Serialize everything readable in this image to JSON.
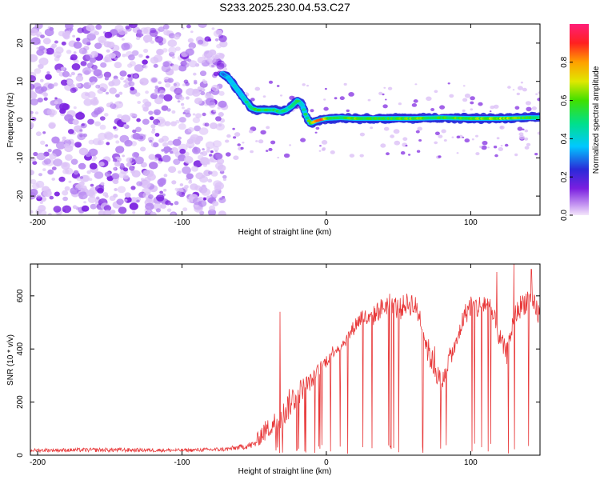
{
  "title": "S233.2025.230.04.53.C27",
  "colors": {
    "snr_line": "#e8393a",
    "frame": "#000000",
    "noise": "#8a2be2"
  },
  "chart_data": [
    {
      "type": "heatmap",
      "title": "S233.2025.230.04.53.C27",
      "xlabel": "Height of straight line (km)",
      "ylabel": "Frequency (Hz)",
      "xlim": [
        -205,
        148
      ],
      "ylim": [
        -25,
        25
      ],
      "x_ticks": [
        -200,
        -100,
        0,
        100
      ],
      "y_ticks": [
        -20,
        -10,
        0,
        10,
        20
      ],
      "noise_region": {
        "x_range": [
          -205,
          -70
        ],
        "y_range": [
          -25,
          25
        ],
        "level": 0.15
      },
      "signal_track": {
        "x": [
          -72,
          -68,
          -64,
          -60,
          -56,
          -52,
          -48,
          -44,
          -40,
          -36,
          -32,
          -28,
          -24,
          -20,
          -17,
          -14,
          -11,
          -8,
          -4,
          0,
          10,
          20,
          40,
          60,
          80,
          100,
          120,
          140,
          148
        ],
        "y": [
          12,
          11,
          9,
          7,
          5,
          3,
          2.5,
          2.5,
          2.5,
          2.5,
          2,
          2.5,
          3.5,
          5,
          4,
          1,
          -1,
          -0.5,
          0,
          0.3,
          0.5,
          0.3,
          0.3,
          0.3,
          0.5,
          0.3,
          0.3,
          0.5,
          0.5
        ],
        "amplitude": [
          0.3,
          0.35,
          0.35,
          0.4,
          0.45,
          0.5,
          0.55,
          0.5,
          0.55,
          0.5,
          0.5,
          0.45,
          0.45,
          0.5,
          0.45,
          0.5,
          0.6,
          0.75,
          0.95,
          0.6,
          0.55,
          0.6,
          0.55,
          0.6,
          0.55,
          0.6,
          0.65,
          0.55,
          0.5
        ]
      },
      "colorbar": {
        "label": "Normalized spectral amplitude",
        "range": [
          0.0,
          1.0
        ],
        "ticks": [
          "0.0",
          "0.2",
          "0.4",
          "0.6",
          "0.8"
        ],
        "tick_values": [
          0.0,
          0.2,
          0.4,
          0.6,
          0.8
        ]
      }
    },
    {
      "type": "line",
      "xlabel": "Height of straight line (km)",
      "ylabel": "SNR (10 * v/v)",
      "xlim": [
        -205,
        148
      ],
      "ylim": [
        0,
        720
      ],
      "x_ticks": [
        -200,
        -100,
        0,
        100
      ],
      "y_ticks": [
        0,
        200,
        400,
        600
      ],
      "series": [
        {
          "name": "SNR",
          "envelope": {
            "x": [
              -205,
              -150,
              -100,
              -70,
              -60,
              -50,
              -45,
              -40,
              -35,
              -30,
              -25,
              -20,
              -15,
              -10,
              -5,
              0,
              5,
              10,
              15,
              20,
              25,
              30,
              35,
              40,
              45,
              50,
              55,
              60,
              65,
              70,
              75,
              80,
              85,
              90,
              95,
              100,
              105,
              110,
              115,
              120,
              125,
              130,
              135,
              140,
              145,
              148
            ],
            "top": [
              25,
              28,
              25,
              30,
              40,
              55,
              120,
              140,
              170,
              200,
              260,
              280,
              300,
              310,
              350,
              380,
              420,
              430,
              470,
              520,
              560,
              540,
              580,
              600,
              620,
              590,
              610,
              620,
              560,
              450,
              380,
              300,
              400,
              450,
              560,
              610,
              600,
              620,
              580,
              480,
              420,
              560,
              610,
              640,
              600,
              580
            ],
            "base": [
              12,
              12,
              12,
              14,
              20,
              25,
              40,
              60,
              80,
              100,
              140,
              180,
              220,
              250,
              300,
              330,
              370,
              390,
              420,
              460,
              490,
              470,
              500,
              520,
              540,
              500,
              530,
              520,
              480,
              350,
              280,
              230,
              330,
              380,
              480,
              520,
              510,
              530,
              480,
              400,
              340,
              480,
              520,
              540,
              500,
              480
            ]
          },
          "spikes": [
            {
              "x": -32,
              "value": 540
            },
            {
              "x": 75,
              "value": 410
            },
            {
              "x": 130,
              "value": 720
            },
            {
              "x": 142,
              "value": 700
            },
            {
              "x": 118,
              "value": 690
            }
          ]
        }
      ]
    }
  ]
}
